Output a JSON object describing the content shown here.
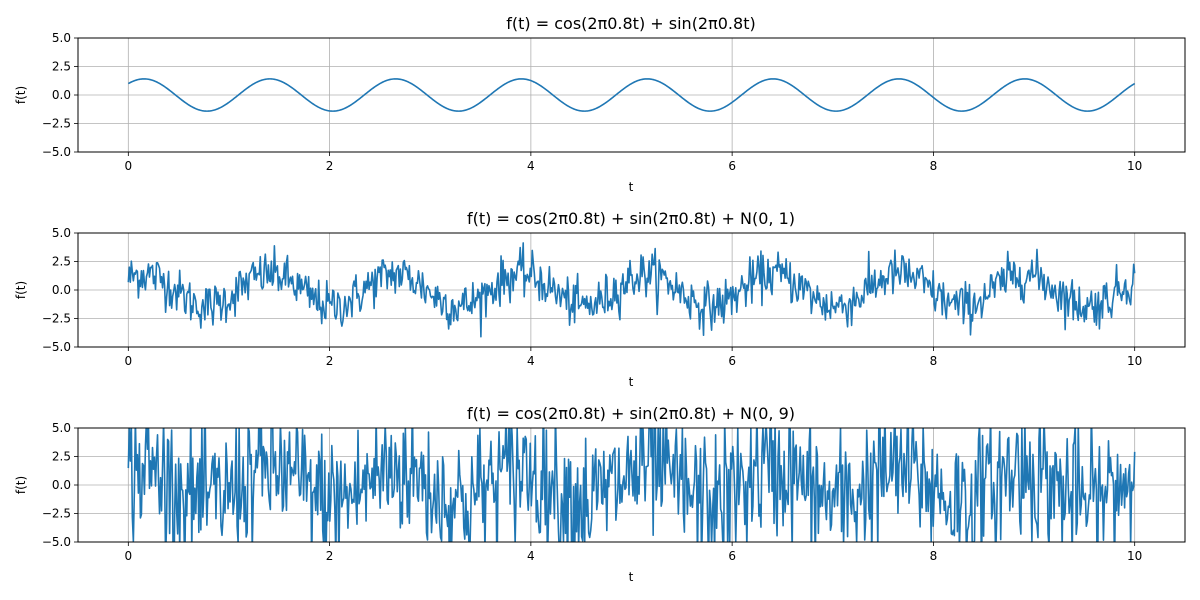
{
  "chart_data": [
    {
      "type": "line",
      "title": "f(t) = cos(2π0.8t) + sin(2π0.8t)",
      "xlabel": "t",
      "ylabel": "f(t)",
      "xlim": [
        -0.5,
        10.5
      ],
      "ylim": [
        -5,
        5
      ],
      "xticks": [
        0,
        2,
        4,
        6,
        8,
        10
      ],
      "yticks": [
        -5.0,
        -2.5,
        0.0,
        2.5,
        5.0
      ],
      "xtick_labels": [
        "0",
        "2",
        "4",
        "6",
        "8",
        "10"
      ],
      "ytick_labels": [
        "−5.0",
        "−2.5",
        "0.0",
        "2.5",
        "5.0"
      ],
      "grid": true,
      "series": [
        {
          "frequency": 0.8,
          "noise_variance": 0,
          "t_range": [
            0,
            10
          ],
          "samples": 1000
        }
      ]
    },
    {
      "type": "line",
      "title": "f(t) = cos(2π0.8t) + sin(2π0.8t) + N(0, 1)",
      "xlabel": "t",
      "ylabel": "f(t)",
      "xlim": [
        -0.5,
        10.5
      ],
      "ylim": [
        -5,
        5
      ],
      "xticks": [
        0,
        2,
        4,
        6,
        8,
        10
      ],
      "yticks": [
        -5.0,
        -2.5,
        0.0,
        2.5,
        5.0
      ],
      "xtick_labels": [
        "0",
        "2",
        "4",
        "6",
        "8",
        "10"
      ],
      "ytick_labels": [
        "−5.0",
        "−2.5",
        "0.0",
        "2.5",
        "5.0"
      ],
      "grid": true,
      "series": [
        {
          "frequency": 0.8,
          "noise_variance": 1,
          "t_range": [
            0,
            10
          ],
          "samples": 1000
        }
      ]
    },
    {
      "type": "line",
      "title": "f(t) = cos(2π0.8t) + sin(2π0.8t) + N(0, 9)",
      "xlabel": "t",
      "ylabel": "f(t)",
      "xlim": [
        -0.5,
        10.5
      ],
      "ylim": [
        -5,
        5
      ],
      "xticks": [
        0,
        2,
        4,
        6,
        8,
        10
      ],
      "yticks": [
        -5.0,
        -2.5,
        0.0,
        2.5,
        5.0
      ],
      "xtick_labels": [
        "0",
        "2",
        "4",
        "6",
        "8",
        "10"
      ],
      "ytick_labels": [
        "−5.0",
        "−2.5",
        "0.0",
        "2.5",
        "5.0"
      ],
      "grid": true,
      "series": [
        {
          "frequency": 0.8,
          "noise_variance": 9,
          "t_range": [
            0,
            10
          ],
          "samples": 1000
        }
      ]
    }
  ],
  "colors": {
    "line": "#1f77b4"
  }
}
